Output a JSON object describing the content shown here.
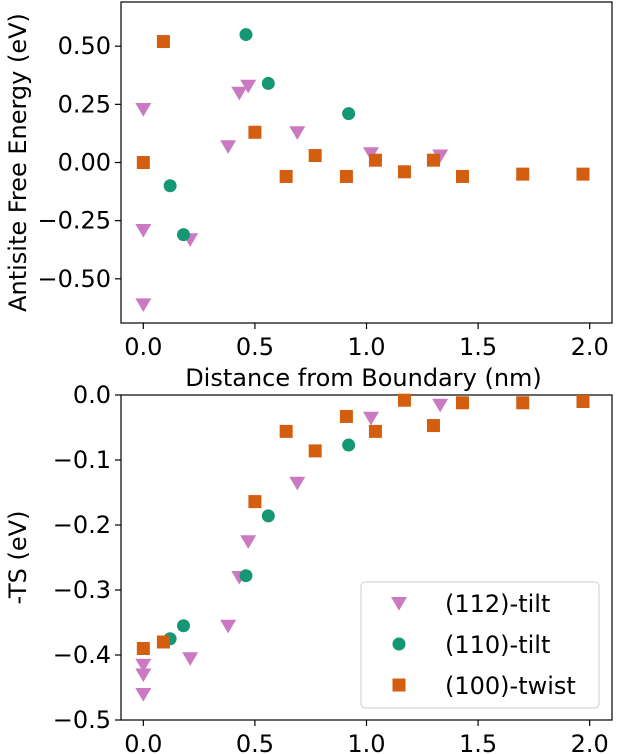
{
  "chart_data": [
    {
      "type": "scatter",
      "title": "",
      "xlabel": "Distance from Boundary (nm)",
      "ylabel": "Antisite Free Energy (eV)",
      "xlim": [
        -0.1,
        2.1
      ],
      "ylim": [
        -0.69,
        0.69
      ],
      "xticks": [
        0.0,
        0.5,
        1.0,
        1.5,
        2.0
      ],
      "xtick_labels": [
        "0.0",
        "0.5",
        "1.0",
        "1.5",
        "2.0"
      ],
      "yticks": [
        0.5,
        0.25,
        0.0,
        -0.25,
        -0.5
      ],
      "ytick_labels": [
        "0.50",
        "0.25",
        "0.00",
        "−0.25",
        "−0.50"
      ],
      "grid": false,
      "series": [
        {
          "name": "(112)-tilt",
          "marker": "triangle-down",
          "color": "#CB7AC1",
          "x": [
            0.0,
            0.0,
            0.0,
            0.21,
            0.38,
            0.43,
            0.47,
            0.69,
            1.02,
            1.33
          ],
          "y": [
            0.23,
            -0.29,
            -0.61,
            -0.33,
            0.07,
            0.3,
            0.33,
            0.13,
            0.04,
            0.03
          ]
        },
        {
          "name": "(110)-tilt",
          "marker": "circle",
          "color": "#139873",
          "x": [
            0.12,
            0.18,
            0.46,
            0.56,
            0.92
          ],
          "y": [
            -0.1,
            -0.31,
            0.55,
            0.34,
            0.21
          ]
        },
        {
          "name": "(100)-twist",
          "marker": "square",
          "color": "#D35E0F",
          "x": [
            0.0,
            0.09,
            0.5,
            0.64,
            0.77,
            0.91,
            1.04,
            1.17,
            1.3,
            1.43,
            1.7,
            1.97
          ],
          "y": [
            0.0,
            0.52,
            0.13,
            -0.06,
            0.03,
            -0.06,
            0.01,
            -0.04,
            0.01,
            -0.06,
            -0.05,
            -0.05
          ]
        }
      ]
    },
    {
      "type": "scatter",
      "title": "",
      "xlabel": "",
      "ylabel": "-TS (eV)",
      "xlim": [
        -0.1,
        2.1
      ],
      "ylim": [
        -0.5,
        0.0
      ],
      "xticks": [
        0.0,
        0.5,
        1.0,
        1.5,
        2.0
      ],
      "xtick_labels": [
        "0.0",
        "0.5",
        "1.0",
        "1.5",
        "2.0"
      ],
      "yticks": [
        0.0,
        -0.1,
        -0.2,
        -0.3,
        -0.4,
        -0.5
      ],
      "ytick_labels": [
        "0.0",
        "−0.1",
        "−0.2",
        "−0.3",
        "−0.4",
        "−0.5"
      ],
      "grid": false,
      "legend": {
        "placement": "lower-right",
        "entries": [
          {
            "label": "(112)-tilt",
            "marker": "triangle-down",
            "color": "#CB7AC1"
          },
          {
            "label": "(110)-tilt",
            "marker": "circle",
            "color": "#139873"
          },
          {
            "label": "(100)-twist",
            "marker": "square",
            "color": "#D35E0F"
          }
        ]
      },
      "series": [
        {
          "name": "(112)-tilt",
          "marker": "triangle-down",
          "color": "#CB7AC1",
          "x": [
            0.0,
            0.0,
            0.0,
            0.21,
            0.38,
            0.43,
            0.47,
            0.69,
            1.02,
            1.33
          ],
          "y": [
            -0.415,
            -0.43,
            -0.46,
            -0.405,
            -0.355,
            -0.28,
            -0.225,
            -0.135,
            -0.035,
            -0.015
          ]
        },
        {
          "name": "(110)-tilt",
          "marker": "circle",
          "color": "#139873",
          "x": [
            0.12,
            0.18,
            0.46,
            0.56,
            0.92
          ],
          "y": [
            -0.375,
            -0.355,
            -0.278,
            -0.186,
            -0.077
          ]
        },
        {
          "name": "(100)-twist",
          "marker": "square",
          "color": "#D35E0F",
          "x": [
            0.0,
            0.09,
            0.5,
            0.64,
            0.77,
            0.91,
            1.04,
            1.17,
            1.3,
            1.43,
            1.7,
            1.97
          ],
          "y": [
            -0.39,
            -0.38,
            -0.164,
            -0.056,
            -0.086,
            -0.033,
            -0.056,
            -0.008,
            -0.047,
            -0.012,
            -0.012,
            -0.01
          ]
        }
      ]
    }
  ]
}
